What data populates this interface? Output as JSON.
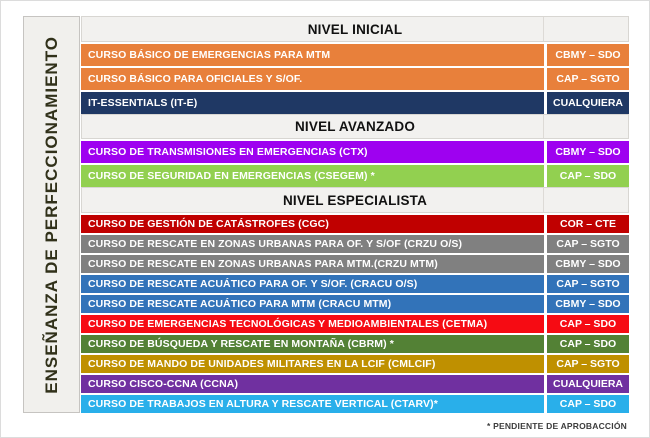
{
  "sidebar": {
    "label": "ENSEÑANZA DE PERFECCIONAMIENTO"
  },
  "footnote": "* PENDIENTE DE APROBACCIÓN",
  "colors": {
    "orange": "#e8803b",
    "navy": "#1f3864",
    "violet": "#9e01f0",
    "light_green": "#92d050",
    "dark_red": "#c00000",
    "gray": "#808080",
    "steel_blue": "#3273b9",
    "bright_red": "#f60b13",
    "moss_green": "#538135",
    "gold": "#bf9000",
    "purple": "#7030a0",
    "cyan": "#29afea",
    "header_bg": "#f2f1ef",
    "sidebar_bg": "#f1f0ed",
    "text_on_row": "#ffffff"
  },
  "sections": [
    {
      "title": "NIVEL INICIAL",
      "rows": [
        {
          "course": "CURSO BÁSICO DE EMERGENCIAS PARA MTM",
          "grade": "CBMY – SDO",
          "color": "#e8803b"
        },
        {
          "course": "CURSO BÁSICO PARA OFICIALES Y S/OF.",
          "grade": "CAP – SGTO",
          "color": "#e8803b"
        },
        {
          "course": "IT-ESSENTIALS (IT-E)",
          "grade": "CUALQUIERA",
          "color": "#1f3864"
        }
      ]
    },
    {
      "title": "NIVEL AVANZADO",
      "rows": [
        {
          "course": "CURSO DE TRANSMISIONES EN EMERGENCIAS (CTX)",
          "grade": "CBMY – SDO",
          "color": "#9e01f0"
        },
        {
          "course": "CURSO DE SEGURIDAD EN EMERGENCIAS (CSEGEM) *",
          "grade": "CAP – SDO",
          "color": "#92d050"
        }
      ]
    },
    {
      "title": "NIVEL ESPECIALISTA",
      "rows": [
        {
          "course": "CURSO DE GESTIÓN DE CATÁSTROFES (CGC)",
          "grade": "COR – CTE",
          "color": "#c00000"
        },
        {
          "course": "CURSO DE RESCATE EN ZONAS URBANAS PARA OF. Y S/OF (CRZU O/S)",
          "grade": "CAP – SGTO",
          "color": "#808080"
        },
        {
          "course": "CURSO DE RESCATE EN ZONAS URBANAS PARA MTM.(CRZU MTM)",
          "grade": "CBMY – SDO",
          "color": "#808080"
        },
        {
          "course": "CURSO DE RESCATE ACUÁTICO PARA OF. Y S/OF. (CRACU O/S)",
          "grade": "CAP – SGTO",
          "color": "#3273b9"
        },
        {
          "course": "CURSO DE RESCATE ACUÁTICO PARA MTM (CRACU MTM)",
          "grade": "CBMY – SDO",
          "color": "#3273b9"
        },
        {
          "course": "CURSO DE EMERGENCIAS TECNOLÓGICAS Y MEDIOAMBIENTALES (CETMA)",
          "grade": "CAP – SDO",
          "color": "#f60b13"
        },
        {
          "course": "CURSO DE BÚSQUEDA Y RESCATE EN MONTAÑA (CBRM) *",
          "grade": "CAP – SDO",
          "color": "#538135"
        },
        {
          "course": "CURSO DE MANDO DE UNIDADES MILITARES EN LA LCIF (CMLCIF)",
          "grade": "CAP – SGTO",
          "color": "#bf9000"
        },
        {
          "course": "CURSO CISCO-CCNA (CCNA)",
          "grade": "CUALQUIERA",
          "color": "#7030a0"
        },
        {
          "course": "CURSO DE TRABAJOS EN ALTURA Y RESCATE VERTICAL  (CTARV)*",
          "grade": "CAP – SDO",
          "color": "#29afea"
        }
      ]
    }
  ]
}
